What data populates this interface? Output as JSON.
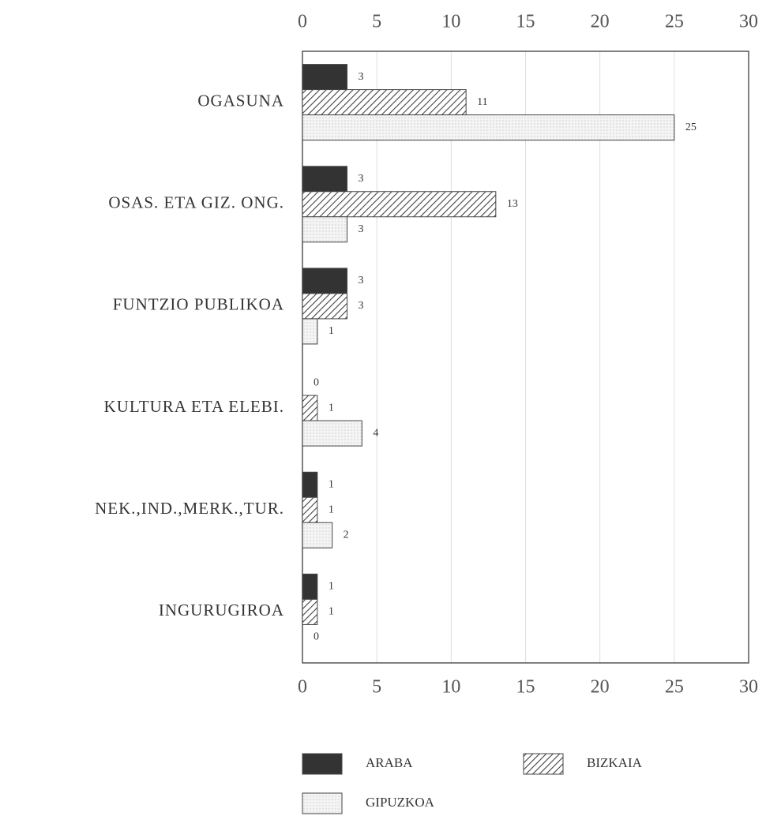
{
  "chart_data": {
    "type": "hbar",
    "categories": [
      "OGASUNA",
      "OSAS. ETA GIZ. ONG.",
      "FUNTZIO PUBLIKOA",
      "KULTURA ETA ELEBI.",
      "NEK.,IND.,MERK.,TUR.",
      "INGURUGIROA"
    ],
    "series": [
      {
        "name": "ARABA",
        "color": "#333333",
        "pattern": "solid",
        "values": [
          3,
          3,
          3,
          0,
          1,
          1
        ]
      },
      {
        "name": "BIZKAIA",
        "color": "#555555",
        "pattern": "hatch",
        "values": [
          11,
          13,
          3,
          1,
          1,
          1
        ]
      },
      {
        "name": "GIPUZKOA",
        "color": "#eeeeee",
        "pattern": "dots",
        "values": [
          25,
          3,
          1,
          4,
          2,
          0
        ]
      }
    ],
    "xlim": [
      0,
      30
    ],
    "xticks": [
      0,
      5,
      10,
      15,
      20,
      25,
      30
    ],
    "grid": true
  }
}
